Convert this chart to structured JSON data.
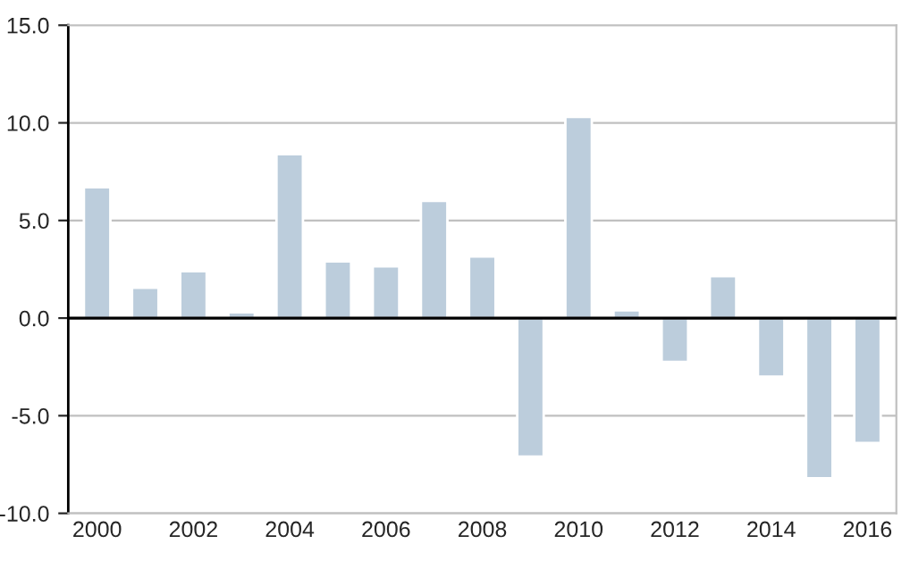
{
  "chart_data": {
    "type": "bar",
    "categories": [
      "2000",
      null,
      "2002",
      null,
      "2004",
      null,
      "2006",
      null,
      "2008",
      null,
      "2010",
      null,
      "2012",
      null,
      "2014",
      null,
      "2016"
    ],
    "values": [
      6.7,
      1.55,
      2.4,
      0.3,
      8.4,
      2.9,
      2.65,
      6.0,
      3.15,
      -7.1,
      10.3,
      0.4,
      -2.25,
      2.15,
      -3.0,
      -8.2,
      -6.4
    ],
    "color": "#bccddc",
    "ylim": [
      -10,
      15
    ],
    "yticks": [
      {
        "value": -10,
        "label": "-10.0"
      },
      {
        "value": -5,
        "label": "-5.0"
      },
      {
        "value": 0,
        "label": "0.0"
      },
      {
        "value": 5,
        "label": "5.0"
      },
      {
        "value": 10,
        "label": "10.0"
      },
      {
        "value": 15,
        "label": "15.0"
      }
    ],
    "grid": "y"
  }
}
